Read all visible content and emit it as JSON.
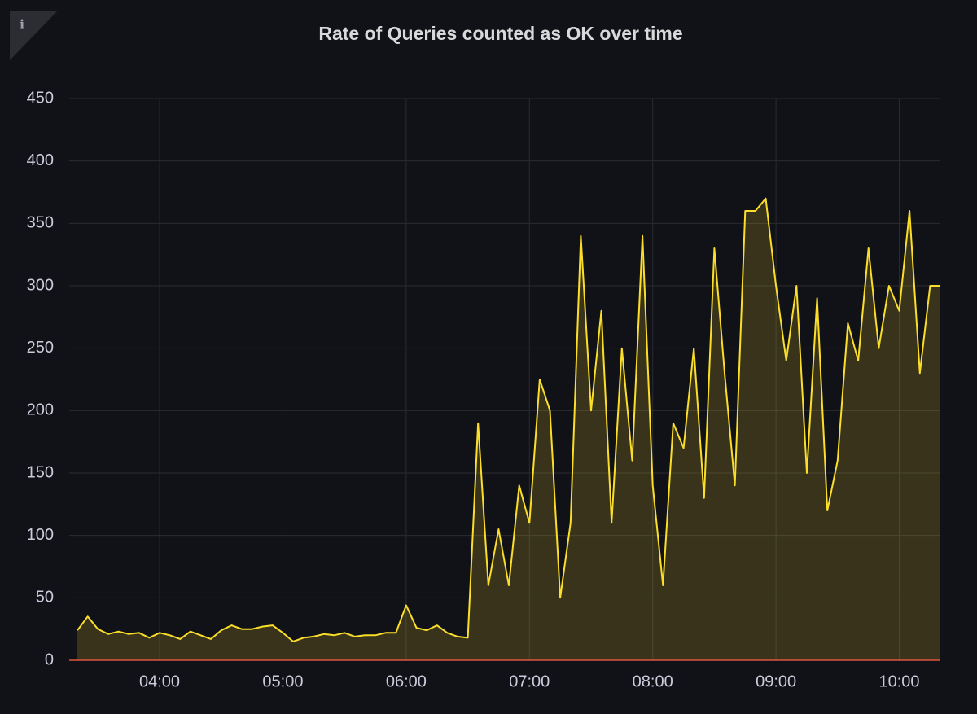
{
  "chart_data": {
    "type": "line",
    "title": "Rate of Queries counted as OK over time",
    "x": [
      "03:20",
      "03:25",
      "03:30",
      "03:35",
      "03:40",
      "03:45",
      "03:50",
      "03:55",
      "04:00",
      "04:05",
      "04:10",
      "04:15",
      "04:20",
      "04:25",
      "04:30",
      "04:35",
      "04:40",
      "04:45",
      "04:50",
      "04:55",
      "05:00",
      "05:05",
      "05:10",
      "05:15",
      "05:20",
      "05:25",
      "05:30",
      "05:35",
      "05:40",
      "05:45",
      "05:50",
      "05:55",
      "06:00",
      "06:05",
      "06:10",
      "06:15",
      "06:20",
      "06:25",
      "06:30",
      "06:35",
      "06:40",
      "06:45",
      "06:50",
      "06:55",
      "07:00",
      "07:05",
      "07:10",
      "07:15",
      "07:20",
      "07:25",
      "07:30",
      "07:35",
      "07:40",
      "07:45",
      "07:50",
      "07:55",
      "08:00",
      "08:05",
      "08:10",
      "08:15",
      "08:20",
      "08:25",
      "08:30",
      "08:35",
      "08:40",
      "08:45",
      "08:50",
      "08:55",
      "09:00",
      "09:05",
      "09:10",
      "09:15",
      "09:20",
      "09:25",
      "09:30",
      "09:35",
      "09:40",
      "09:45",
      "09:50",
      "09:55",
      "10:00",
      "10:05",
      "10:10",
      "10:15",
      "10:20"
    ],
    "series": [
      {
        "name": "OK",
        "color": "#fade2a",
        "values": [
          24,
          35,
          25,
          21,
          23,
          21,
          22,
          18,
          22,
          20,
          17,
          23,
          20,
          17,
          24,
          28,
          25,
          25,
          27,
          28,
          22,
          15,
          18,
          19,
          21,
          20,
          22,
          19,
          20,
          20,
          22,
          22,
          44,
          26,
          24,
          28,
          22,
          19,
          18,
          190,
          60,
          105,
          60,
          140,
          110,
          225,
          200,
          50,
          110,
          340,
          200,
          280,
          110,
          250,
          160,
          340,
          140,
          60,
          190,
          170,
          250,
          130,
          330,
          230,
          140,
          360,
          360,
          370,
          300,
          240,
          300,
          150,
          290,
          120,
          160,
          270,
          240,
          330,
          250,
          300,
          280,
          360,
          230,
          300,
          300
        ]
      }
    ],
    "xlim": [
      "03:16",
      "10:20"
    ],
    "xticks": [
      "04:00",
      "05:00",
      "06:00",
      "07:00",
      "08:00",
      "09:00",
      "10:00"
    ],
    "ylim": [
      0,
      450
    ],
    "yticks": [
      0,
      50,
      100,
      150,
      200,
      250,
      300,
      350,
      400,
      450
    ],
    "grid": true
  }
}
